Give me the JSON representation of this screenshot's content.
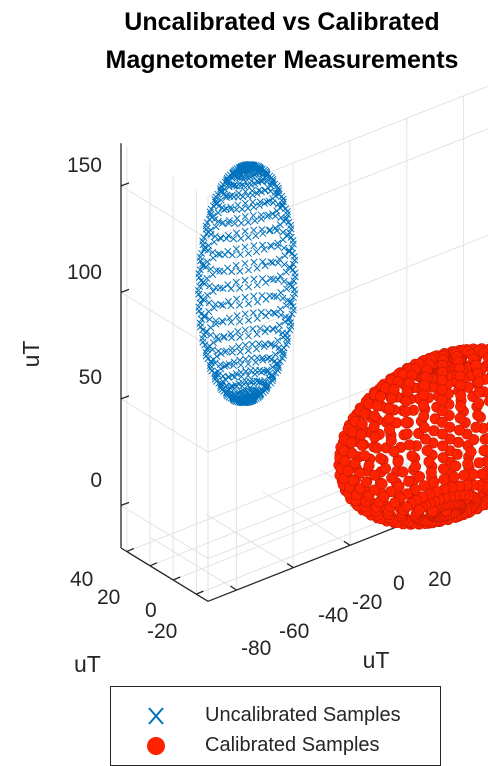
{
  "chart_data": {
    "type": "scatter3d",
    "title": [
      "Uncalibrated vs Calibrated",
      "Magnetometer Measurements"
    ],
    "xlabel": "uT",
    "ylabel": "uT",
    "zlabel": "uT",
    "x_ticks": [
      "-80",
      "-60",
      "-40",
      "-20",
      "0",
      "20"
    ],
    "y_ticks": [
      "40",
      "20",
      "0",
      "-20"
    ],
    "z_ticks": [
      "150",
      "100",
      "50",
      "0"
    ],
    "grid": true,
    "legend_position": "bottom",
    "series": [
      {
        "name": "Uncalibrated Samples",
        "marker": "x",
        "color": "#0072BD",
        "shape": "ellipsoid",
        "center": [
          -60,
          10,
          100
        ],
        "radii": [
          15,
          20,
          55
        ]
      },
      {
        "name": "Calibrated Samples",
        "marker": "filled-circle",
        "color": "#FF2200",
        "shape": "sphere",
        "center": [
          0,
          -15,
          5
        ],
        "radii": [
          35,
          35,
          35
        ]
      }
    ]
  }
}
